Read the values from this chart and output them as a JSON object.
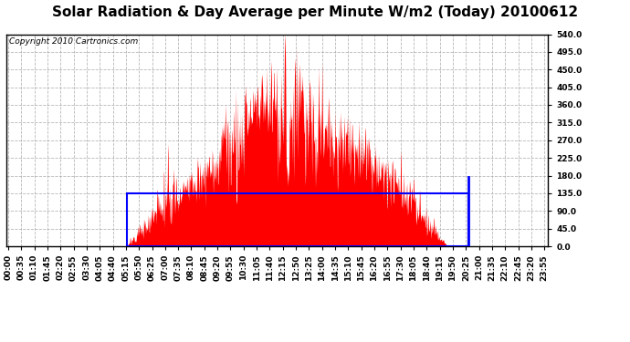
{
  "title": "Solar Radiation & Day Average per Minute W/m2 (Today) 20100612",
  "copyright": "Copyright 2010 Cartronics.com",
  "y_ticks": [
    0.0,
    45.0,
    90.0,
    135.0,
    180.0,
    225.0,
    270.0,
    315.0,
    360.0,
    405.0,
    450.0,
    495.0,
    540.0
  ],
  "y_max": 540.0,
  "y_min": 0.0,
  "background_color": "#ffffff",
  "bar_color": "#ff0000",
  "avg_line_color": "#0000ff",
  "grid_color": "#aaaaaa",
  "title_fontsize": 11,
  "copyright_fontsize": 6.5,
  "tick_fontsize": 6.5,
  "n_points": 1440,
  "label_interval_minutes": 35,
  "sunrise_minute": 317,
  "sunset_minute": 1175,
  "current_minute": 1231,
  "day_avg": 135.0
}
